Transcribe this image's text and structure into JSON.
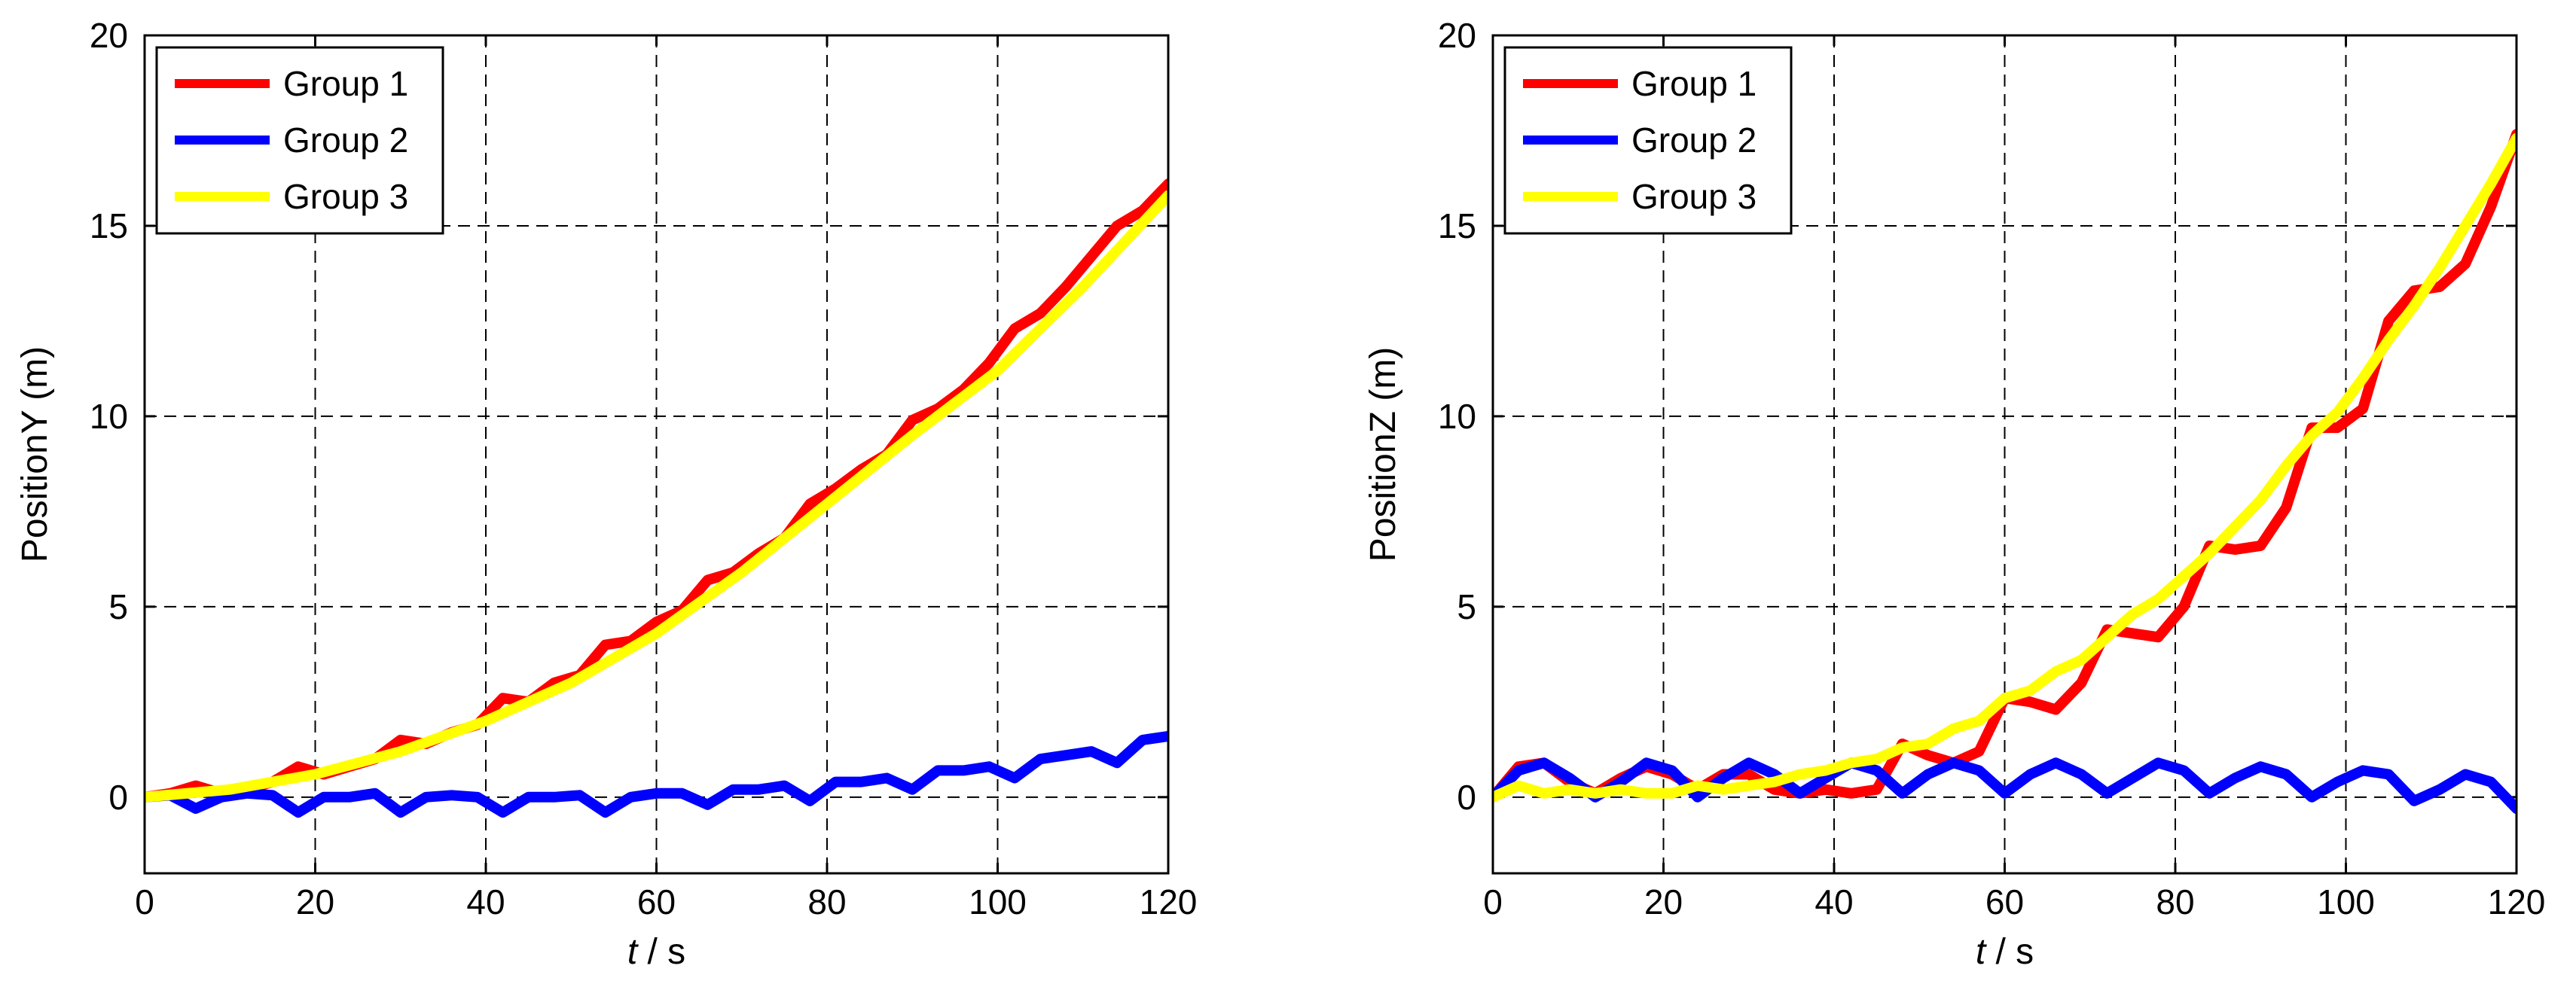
{
  "chart_data": [
    {
      "id": "left",
      "type": "line",
      "title": "",
      "xlabel_var": "t",
      "xlabel_unit": " / s",
      "ylabel": "PositionY (m)",
      "xlim": [
        0,
        120
      ],
      "ylim": [
        -2,
        20
      ],
      "xticks": [
        0,
        20,
        40,
        60,
        80,
        100,
        120
      ],
      "yticks": [
        0,
        5,
        10,
        15,
        20
      ],
      "grid": true,
      "legend_position": "top-left",
      "series": [
        {
          "name": "Group 1",
          "color": "#ff0000",
          "x": [
            0,
            3,
            6,
            9,
            12,
            15,
            18,
            21,
            24,
            27,
            30,
            33,
            36,
            39,
            42,
            45,
            48,
            51,
            54,
            57,
            60,
            63,
            66,
            69,
            72,
            75,
            78,
            81,
            84,
            87,
            90,
            93,
            96,
            99,
            102,
            105,
            108,
            111,
            114,
            117,
            120
          ],
          "y": [
            0,
            0.1,
            0.3,
            0.1,
            0.2,
            0.4,
            0.8,
            0.6,
            0.8,
            1.0,
            1.5,
            1.4,
            1.7,
            1.9,
            2.6,
            2.5,
            3.0,
            3.2,
            4.0,
            4.1,
            4.6,
            4.9,
            5.7,
            5.9,
            6.4,
            6.8,
            7.7,
            8.1,
            8.6,
            9.0,
            9.9,
            10.2,
            10.7,
            11.4,
            12.3,
            12.7,
            13.4,
            14.2,
            15.0,
            15.4,
            16.1
          ]
        },
        {
          "name": "Group 2",
          "color": "#0000ff",
          "x": [
            0,
            3,
            6,
            9,
            12,
            15,
            18,
            21,
            24,
            27,
            30,
            33,
            36,
            39,
            42,
            45,
            48,
            51,
            54,
            57,
            60,
            63,
            66,
            69,
            72,
            75,
            78,
            81,
            84,
            87,
            90,
            93,
            96,
            99,
            102,
            105,
            108,
            111,
            114,
            117,
            120
          ],
          "y": [
            0,
            0.05,
            -0.3,
            0.0,
            0.1,
            0.05,
            -0.4,
            0.0,
            0.0,
            0.1,
            -0.4,
            0.0,
            0.05,
            0.0,
            -0.4,
            0.0,
            0.0,
            0.05,
            -0.4,
            0.0,
            0.1,
            0.1,
            -0.2,
            0.2,
            0.2,
            0.3,
            -0.1,
            0.4,
            0.4,
            0.5,
            0.2,
            0.7,
            0.7,
            0.8,
            0.5,
            1.0,
            1.1,
            1.2,
            0.9,
            1.5,
            1.6
          ]
        },
        {
          "name": "Group 3",
          "color": "#ffff00",
          "x": [
            0,
            10,
            20,
            30,
            40,
            50,
            60,
            70,
            80,
            90,
            100,
            110,
            120
          ],
          "y": [
            0,
            0.2,
            0.6,
            1.2,
            2.0,
            3.0,
            4.3,
            5.9,
            7.7,
            9.5,
            11.2,
            13.4,
            15.8
          ]
        }
      ]
    },
    {
      "id": "right",
      "type": "line",
      "title": "",
      "xlabel_var": "t",
      "xlabel_unit": " / s",
      "ylabel": "PositionZ (m)",
      "xlim": [
        0,
        120
      ],
      "ylim": [
        -2,
        20
      ],
      "xticks": [
        0,
        20,
        40,
        60,
        80,
        100,
        120
      ],
      "yticks": [
        0,
        5,
        10,
        15,
        20
      ],
      "grid": true,
      "legend_position": "top-left",
      "series": [
        {
          "name": "Group 1",
          "color": "#ff0000",
          "x": [
            0,
            3,
            6,
            9,
            12,
            15,
            18,
            21,
            24,
            27,
            30,
            33,
            36,
            39,
            42,
            45,
            48,
            51,
            54,
            57,
            60,
            63,
            66,
            69,
            72,
            75,
            78,
            81,
            84,
            87,
            90,
            93,
            96,
            99,
            102,
            105,
            108,
            111,
            114,
            117,
            120
          ],
          "y": [
            0,
            0.8,
            0.9,
            0.4,
            0.1,
            0.5,
            0.8,
            0.6,
            0.2,
            0.6,
            0.6,
            0.2,
            0.1,
            0.2,
            0.1,
            0.2,
            1.4,
            1.1,
            0.9,
            1.2,
            2.6,
            2.5,
            2.3,
            3.0,
            4.4,
            4.3,
            4.2,
            5.0,
            6.6,
            6.5,
            6.6,
            7.6,
            9.7,
            9.7,
            10.2,
            12.5,
            13.3,
            13.4,
            14.0,
            15.5,
            17.4
          ]
        },
        {
          "name": "Group 2",
          "color": "#0000ff",
          "x": [
            0,
            3,
            6,
            9,
            12,
            15,
            18,
            21,
            24,
            27,
            30,
            33,
            36,
            39,
            42,
            45,
            48,
            51,
            54,
            57,
            60,
            63,
            66,
            69,
            72,
            75,
            78,
            81,
            84,
            87,
            90,
            93,
            96,
            99,
            102,
            105,
            108,
            111,
            114,
            117,
            120
          ],
          "y": [
            0,
            0.7,
            0.9,
            0.5,
            0.0,
            0.4,
            0.9,
            0.7,
            0.0,
            0.5,
            0.9,
            0.6,
            0.1,
            0.5,
            0.9,
            0.7,
            0.1,
            0.6,
            0.9,
            0.7,
            0.1,
            0.6,
            0.9,
            0.6,
            0.1,
            0.5,
            0.9,
            0.7,
            0.1,
            0.5,
            0.8,
            0.6,
            0.0,
            0.4,
            0.7,
            0.6,
            -0.1,
            0.2,
            0.6,
            0.4,
            -0.3
          ]
        },
        {
          "name": "Group 3",
          "color": "#ffff00",
          "x": [
            0,
            3,
            6,
            9,
            12,
            15,
            18,
            21,
            24,
            27,
            30,
            33,
            36,
            39,
            42,
            45,
            48,
            51,
            54,
            57,
            60,
            63,
            66,
            69,
            72,
            75,
            78,
            81,
            84,
            87,
            90,
            93,
            96,
            99,
            102,
            105,
            108,
            111,
            114,
            117,
            120
          ],
          "y": [
            0,
            0.3,
            0.1,
            0.2,
            0.1,
            0.2,
            0.1,
            0.1,
            0.3,
            0.2,
            0.3,
            0.4,
            0.6,
            0.7,
            0.9,
            1.0,
            1.3,
            1.4,
            1.8,
            2.0,
            2.6,
            2.8,
            3.3,
            3.6,
            4.2,
            4.8,
            5.2,
            5.8,
            6.4,
            7.1,
            7.8,
            8.7,
            9.5,
            10.1,
            11.0,
            12.0,
            12.9,
            13.9,
            15.0,
            16.1,
            17.3
          ]
        }
      ]
    }
  ]
}
